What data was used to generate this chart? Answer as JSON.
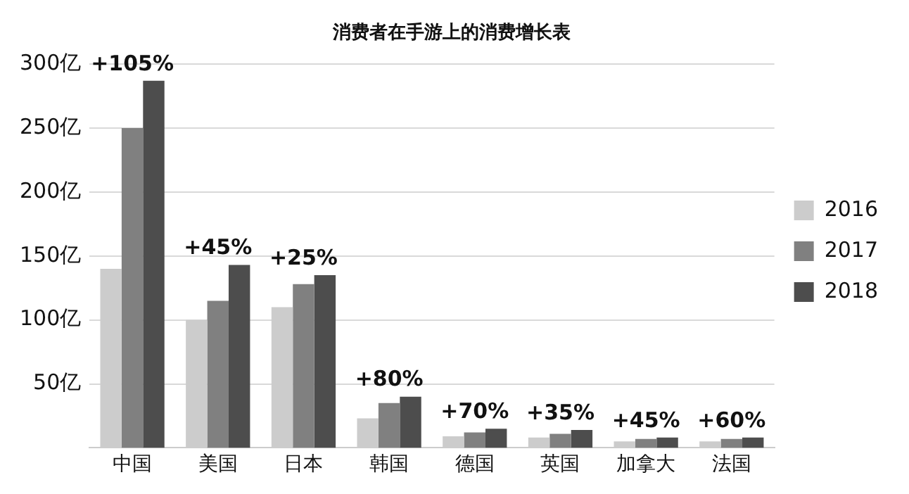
{
  "chart_data": {
    "type": "bar",
    "title": "消费者在手游上的消费增长表",
    "categories": [
      "中国",
      "美国",
      "日本",
      "韩国",
      "德国",
      "英国",
      "加拿大",
      "法国"
    ],
    "series": [
      {
        "name": "2016",
        "color": "#cccccc",
        "values": [
          140,
          100,
          110,
          23,
          9,
          8,
          5,
          5
        ]
      },
      {
        "name": "2017",
        "color": "#808080",
        "values": [
          250,
          115,
          128,
          35,
          12,
          11,
          7,
          7
        ]
      },
      {
        "name": "2018",
        "color": "#4d4d4d",
        "values": [
          287,
          143,
          135,
          40,
          15,
          14,
          8,
          8
        ]
      }
    ],
    "ylim": [
      0,
      300
    ],
    "yticks": [
      {
        "value": 50,
        "label": "50亿"
      },
      {
        "value": 100,
        "label": "100亿"
      },
      {
        "value": 150,
        "label": "150亿"
      },
      {
        "value": 200,
        "label": "200亿"
      },
      {
        "value": 250,
        "label": "250亿"
      },
      {
        "value": 300,
        "label": "300亿"
      }
    ],
    "grid": "y",
    "legend": "right",
    "annotations": [
      "+105%",
      "+45%",
      "+25%",
      "+80%",
      "+70%",
      "+35%",
      "+45%",
      "+60%"
    ]
  }
}
